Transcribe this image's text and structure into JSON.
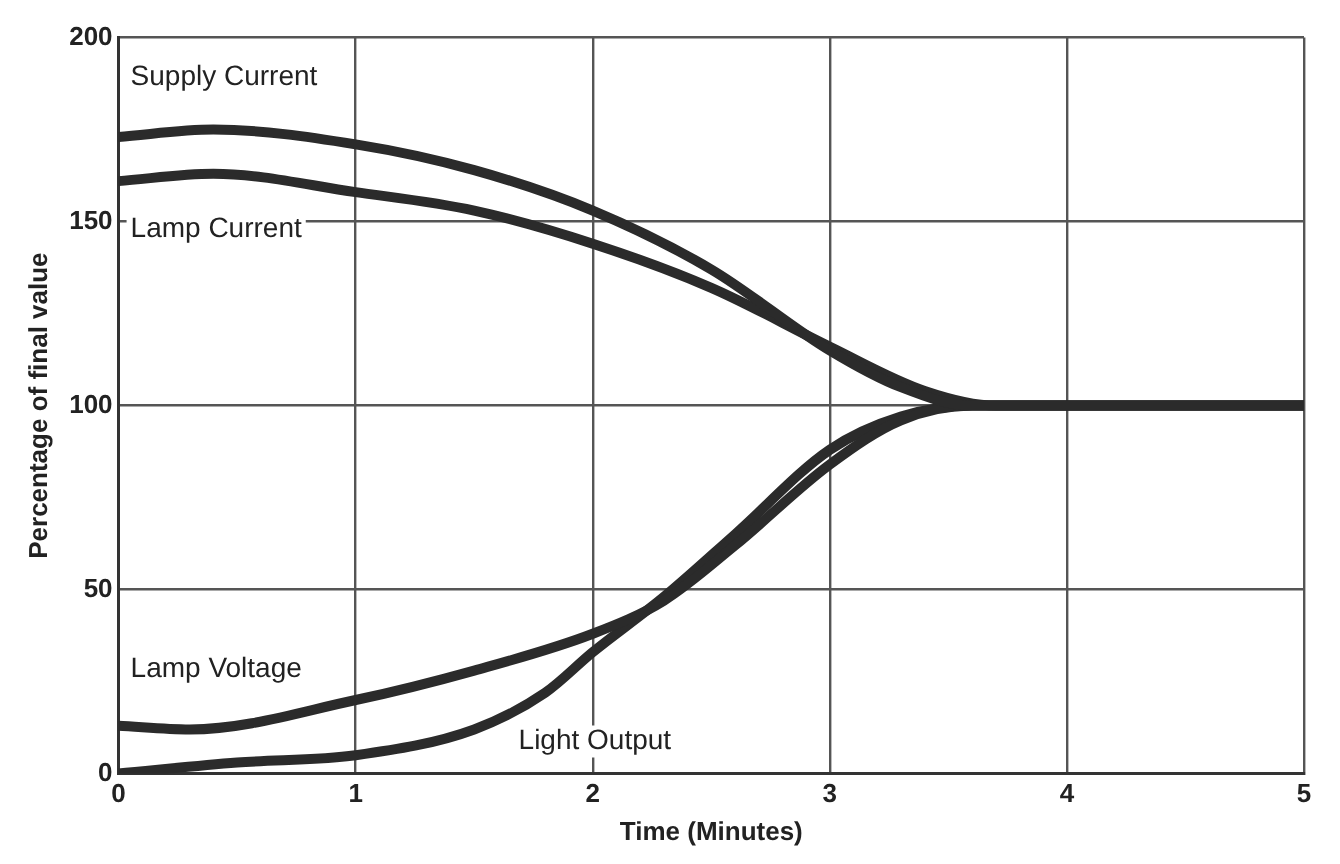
{
  "chart_data": {
    "type": "line",
    "xlabel": "Time (Minutes)",
    "ylabel": "Percentage of final value",
    "xlim": [
      0,
      5
    ],
    "xticks": [
      0,
      1,
      2,
      3,
      4,
      5
    ],
    "ylim": [
      0,
      200
    ],
    "yticks": [
      0,
      50,
      100,
      150,
      200
    ],
    "grid": true,
    "legend": false,
    "marker": "none",
    "line_style": "solid",
    "series": [
      {
        "name": "Supply Current",
        "color": "#2b2b2b",
        "x": [
          0,
          0.4,
          1,
          1.5,
          2,
          2.5,
          3,
          3.3,
          3.6,
          4,
          5
        ],
        "values": [
          173,
          175,
          171,
          164,
          153,
          137,
          115,
          105,
          100,
          100,
          100
        ]
      },
      {
        "name": "Lamp Current",
        "color": "#2b2b2b",
        "x": [
          0,
          0.4,
          1,
          1.5,
          2,
          2.5,
          3,
          3.4,
          3.7,
          4,
          5
        ],
        "values": [
          161,
          163,
          158,
          153,
          144,
          132,
          116,
          104,
          100,
          100,
          100
        ]
      },
      {
        "name": "Lamp Voltage",
        "color": "#2b2b2b",
        "x": [
          0,
          0.3,
          1,
          1.5,
          2,
          2.3,
          2.6,
          3,
          3.3,
          3.6,
          4,
          5
        ],
        "values": [
          13,
          12,
          20,
          28,
          38,
          47,
          62,
          84,
          96,
          100,
          100,
          100
        ]
      },
      {
        "name": "Light Output",
        "color": "#2b2b2b",
        "x": [
          0,
          0.5,
          1,
          1.5,
          1.8,
          2,
          2.3,
          2.6,
          3,
          3.3,
          3.6,
          4,
          5
        ],
        "values": [
          0,
          3,
          5,
          12,
          22,
          33,
          48,
          65,
          88,
          97,
          100,
          100,
          100
        ]
      }
    ]
  }
}
